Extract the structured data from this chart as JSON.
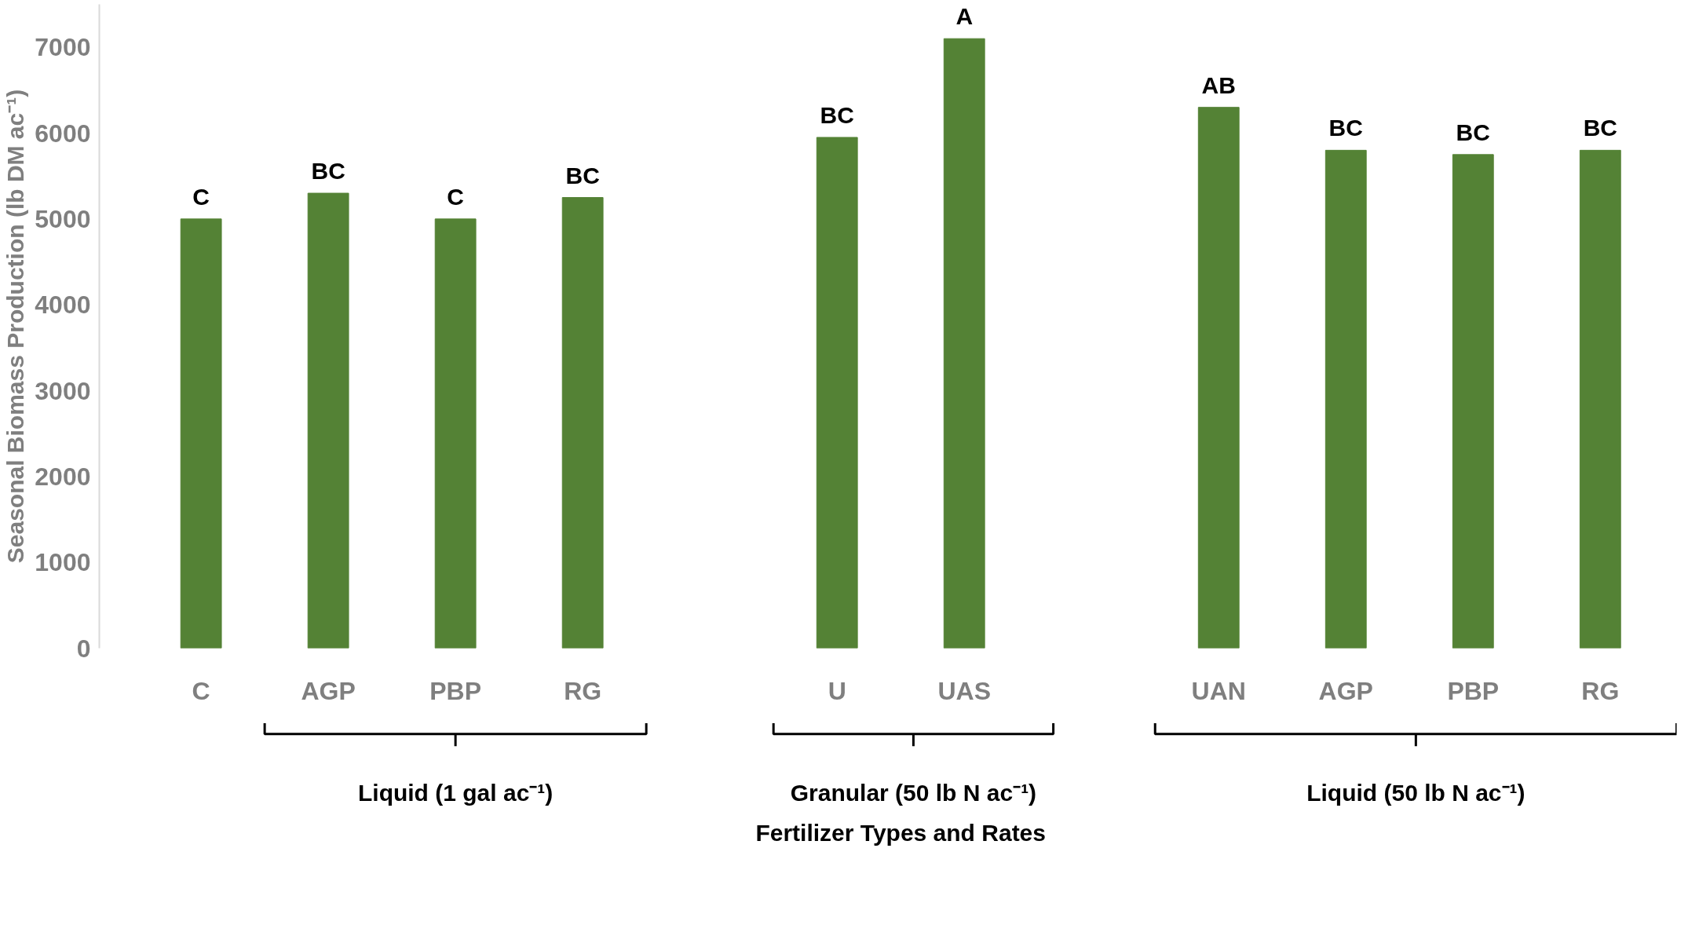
{
  "chart_data": {
    "type": "bar",
    "ylabel": "Seasonal Biomass Production (lb DM ac⁻¹)",
    "categories": [
      "C",
      "AGP",
      "PBP",
      "RG",
      null,
      "U",
      "UAS",
      null,
      "UAN",
      "AGP",
      "PBP",
      "RG"
    ],
    "values": [
      5000,
      5300,
      5000,
      5250,
      null,
      5950,
      7100,
      null,
      6300,
      5800,
      5750,
      5800
    ],
    "value_labels": [
      "C",
      "BC",
      "C",
      "BC",
      null,
      "BC",
      "A",
      null,
      "AB",
      "BC",
      "BC",
      "BC"
    ],
    "color": "#548235",
    "ylim": [
      0,
      7500
    ],
    "yticks": [
      0,
      1000,
      2000,
      3000,
      4000,
      5000,
      6000,
      7000
    ],
    "grid": false,
    "annotations": [
      "Liquid (1 gal ac⁻¹)",
      "Granular (50 lb N ac⁻¹)",
      "Liquid (50 lb N ac⁻¹)",
      "Fertilizer Types and Rates"
    ]
  }
}
